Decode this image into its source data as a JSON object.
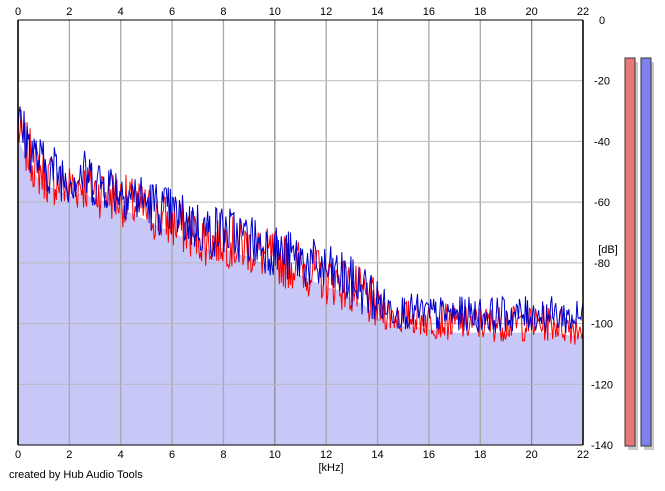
{
  "footer_credit": "created by Hub Audio Tools",
  "chart_data": {
    "type": "line",
    "title": "",
    "xlabel": "[kHz]",
    "ylabel": "[dB]",
    "xlim": [
      0,
      22
    ],
    "ylim": [
      -140,
      0
    ],
    "x_ticks": [
      0,
      2,
      4,
      6,
      8,
      10,
      12,
      14,
      16,
      18,
      20,
      22
    ],
    "y_ticks": [
      0,
      -20,
      -40,
      -60,
      -80,
      -100,
      -120,
      -140
    ],
    "grid": true,
    "x_axis_labels": "top-and-bottom",
    "y_axis_side": "right",
    "series": [
      {
        "color": "#ff0000",
        "x": [
          0,
          0.25,
          0.5,
          0.75,
          1,
          1.5,
          2,
          2.5,
          3,
          3.5,
          4,
          4.5,
          5,
          5.5,
          6,
          6.5,
          7,
          7.5,
          8,
          8.5,
          9,
          9.5,
          10,
          10.5,
          11,
          11.5,
          12,
          12.5,
          13,
          13.5,
          14,
          14.5,
          15,
          15.5,
          16,
          16.5,
          17,
          17.5,
          18,
          18.5,
          19,
          19.5,
          20,
          20.5,
          21,
          21.5,
          22
        ],
        "y": [
          -36,
          -41,
          -45,
          -49,
          -51,
          -53,
          -55,
          -54,
          -56,
          -57,
          -59,
          -61,
          -63,
          -65,
          -67,
          -69,
          -71,
          -73,
          -72,
          -74,
          -75,
          -77,
          -78,
          -80,
          -81,
          -83,
          -85,
          -86,
          -89,
          -91,
          -95,
          -97,
          -98,
          -98,
          -99,
          -99,
          -100,
          -100,
          -100,
          -100,
          -100,
          -100,
          -100,
          -100,
          -100,
          -101,
          -101
        ]
      },
      {
        "color": "#0000cc",
        "x": [
          0,
          0.25,
          0.5,
          0.75,
          1,
          1.5,
          2,
          2.5,
          3,
          3.5,
          4,
          4.5,
          5,
          5.5,
          6,
          6.5,
          7,
          7.5,
          8,
          8.5,
          9,
          9.5,
          10,
          10.5,
          11,
          11.5,
          12,
          12.5,
          13,
          13.5,
          14,
          14.5,
          15,
          15.5,
          16,
          16.5,
          17,
          17.5,
          18,
          18.5,
          19,
          19.5,
          20,
          20.5,
          21,
          21.5,
          22
        ],
        "y": [
          -34,
          -38,
          -42,
          -46,
          -48,
          -50,
          -52,
          -51,
          -53,
          -54,
          -56,
          -58,
          -60,
          -62,
          -64,
          -66,
          -68,
          -70,
          -69,
          -71,
          -72,
          -74,
          -76,
          -78,
          -79,
          -81,
          -83,
          -84,
          -87,
          -89,
          -93,
          -95,
          -96,
          -96,
          -97,
          -97,
          -97,
          -97,
          -97,
          -97,
          -97,
          -97,
          -97,
          -97,
          -97,
          -98,
          -98
        ]
      }
    ],
    "fill_color": "#c8c8f8",
    "level_meters": [
      {
        "channel": "left",
        "color": "#e87878"
      },
      {
        "channel": "right",
        "color": "#8080ee"
      }
    ]
  }
}
